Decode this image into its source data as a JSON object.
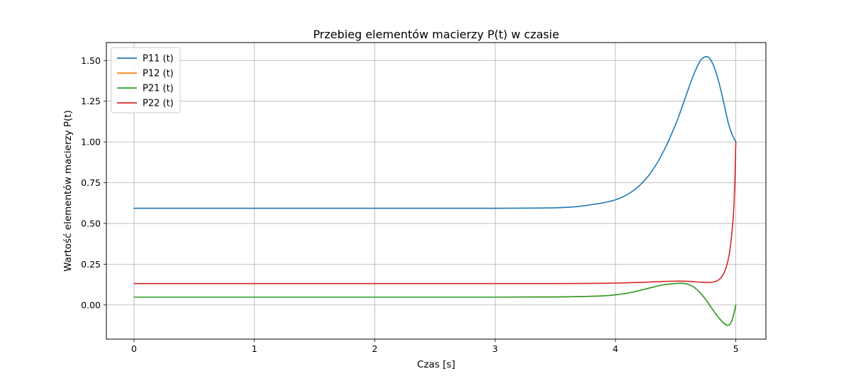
{
  "chart_data": {
    "type": "line",
    "title": "Przebieg elementów macierzy P(t) w czasie",
    "xlabel": "Czas [s]",
    "ylabel": "Wartość elementów macierzy P(t)",
    "xlim": [
      -0.23,
      5.25
    ],
    "ylim": [
      -0.21,
      1.61
    ],
    "xticks": [
      0,
      1,
      2,
      3,
      4,
      5
    ],
    "xtick_labels": [
      "0",
      "1",
      "2",
      "3",
      "4",
      "5"
    ],
    "yticks": [
      0.0,
      0.25,
      0.5,
      0.75,
      1.0,
      1.25,
      1.5
    ],
    "ytick_labels": [
      "0.00",
      "0.25",
      "0.50",
      "0.75",
      "1.00",
      "1.25",
      "1.50"
    ],
    "grid": true,
    "legend_position": "top-left",
    "series": [
      {
        "name": "P11 (t)",
        "color": "#1f77b4",
        "x": [
          0,
          0.5,
          1,
          1.5,
          2,
          2.5,
          3,
          3.3,
          3.5,
          3.6,
          3.7,
          3.8,
          3.9,
          4.0,
          4.1,
          4.2,
          4.3,
          4.4,
          4.5,
          4.55,
          4.6,
          4.65,
          4.7,
          4.74,
          4.78,
          4.82,
          4.86,
          4.9,
          4.94,
          4.97,
          5.0
        ],
        "y": [
          0.593,
          0.593,
          0.593,
          0.593,
          0.593,
          0.593,
          0.593,
          0.594,
          0.596,
          0.599,
          0.605,
          0.615,
          0.627,
          0.645,
          0.678,
          0.733,
          0.818,
          0.943,
          1.108,
          1.208,
          1.313,
          1.413,
          1.492,
          1.522,
          1.515,
          1.46,
          1.365,
          1.24,
          1.11,
          1.045,
          1.0
        ]
      },
      {
        "name": "P12 (t)",
        "color": "#ff7f0e",
        "x": [
          0,
          1,
          2,
          3,
          3.5,
          3.7,
          3.9,
          4.0,
          4.1,
          4.2,
          4.3,
          4.4,
          4.5,
          4.55,
          4.6,
          4.65,
          4.7,
          4.75,
          4.8,
          4.85,
          4.9,
          4.93,
          4.95,
          4.97,
          4.985,
          5.0
        ],
        "y": [
          0.048,
          0.048,
          0.048,
          0.048,
          0.049,
          0.051,
          0.056,
          0.062,
          0.072,
          0.088,
          0.107,
          0.123,
          0.132,
          0.133,
          0.127,
          0.11,
          0.078,
          0.033,
          -0.02,
          -0.072,
          -0.112,
          -0.125,
          -0.12,
          -0.09,
          -0.05,
          0.0
        ]
      },
      {
        "name": "P21 (t)",
        "color": "#2ca02c",
        "x": [
          0,
          1,
          2,
          3,
          3.5,
          3.7,
          3.9,
          4.0,
          4.1,
          4.2,
          4.3,
          4.4,
          4.5,
          4.55,
          4.6,
          4.65,
          4.7,
          4.75,
          4.8,
          4.85,
          4.9,
          4.93,
          4.95,
          4.97,
          4.985,
          5.0
        ],
        "y": [
          0.048,
          0.048,
          0.048,
          0.048,
          0.049,
          0.051,
          0.056,
          0.062,
          0.072,
          0.088,
          0.107,
          0.123,
          0.132,
          0.133,
          0.127,
          0.11,
          0.078,
          0.033,
          -0.02,
          -0.072,
          -0.112,
          -0.125,
          -0.12,
          -0.09,
          -0.05,
          0.0
        ]
      },
      {
        "name": "P22 (t)",
        "color": "#d62728",
        "x": [
          0,
          1,
          2,
          3,
          3.5,
          3.8,
          4.0,
          4.2,
          4.4,
          4.5,
          4.6,
          4.7,
          4.75,
          4.8,
          4.85,
          4.88,
          4.91,
          4.94,
          4.96,
          4.975,
          4.985,
          4.993,
          5.0
        ],
        "y": [
          0.131,
          0.131,
          0.131,
          0.131,
          0.131,
          0.132,
          0.134,
          0.138,
          0.144,
          0.146,
          0.145,
          0.14,
          0.138,
          0.139,
          0.15,
          0.17,
          0.21,
          0.29,
          0.39,
          0.5,
          0.62,
          0.78,
          1.0
        ]
      }
    ]
  }
}
